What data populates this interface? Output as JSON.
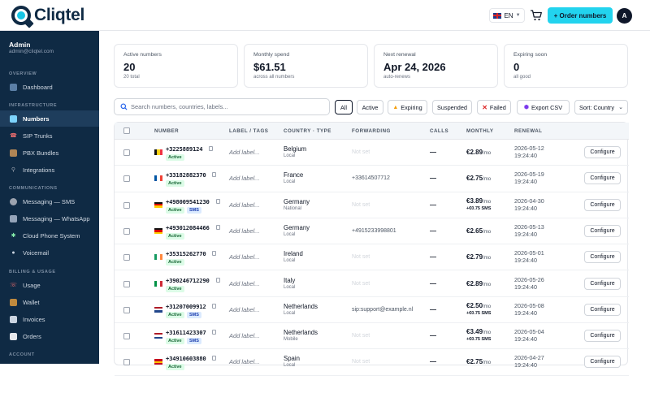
{
  "brand": {
    "name": "Cliqtel"
  },
  "header": {
    "language": "EN",
    "order_button": "+ Order numbers",
    "avatar_initial": "A"
  },
  "user": {
    "name": "Admin",
    "email": "admin@cliqtel.com"
  },
  "sidebar": {
    "sections": [
      "OVERVIEW",
      "INFRASTRUCTURE",
      "COMMUNICATIONS",
      "BILLING & USAGE",
      "ACCOUNT"
    ],
    "items": [
      {
        "label": "Dashboard",
        "icon": "dashboard-icon",
        "active": false
      },
      {
        "label": "Numbers",
        "icon": "numbers-icon",
        "active": true
      },
      {
        "label": "SIP Trunks",
        "icon": "phone-icon",
        "active": false
      },
      {
        "label": "PBX Bundles",
        "icon": "box-icon",
        "active": false
      },
      {
        "label": "Integrations",
        "icon": "integrations-icon",
        "active": false
      },
      {
        "label": "Messaging — SMS",
        "icon": "chat-icon",
        "active": false
      },
      {
        "label": "Messaging — WhatsApp",
        "icon": "whatsapp-icon",
        "active": false
      },
      {
        "label": "Cloud Phone System",
        "icon": "cloud-phone-icon",
        "active": false
      },
      {
        "label": "Voicemail",
        "icon": "voicemail-icon",
        "active": false
      },
      {
        "label": "Usage",
        "icon": "usage-icon",
        "active": false
      },
      {
        "label": "Wallet",
        "icon": "wallet-icon",
        "active": false
      },
      {
        "label": "Invoices",
        "icon": "invoice-icon",
        "active": false
      },
      {
        "label": "Orders",
        "icon": "orders-icon",
        "active": false
      }
    ]
  },
  "stats": [
    {
      "label": "Active numbers",
      "value": "20",
      "sub": "20 total"
    },
    {
      "label": "Monthly spend",
      "value": "$61.51",
      "sub": "across all numbers"
    },
    {
      "label": "Next renewal",
      "value": "Apr 24, 2026",
      "sub": "auto-renews"
    },
    {
      "label": "Expiring soon",
      "value": "0",
      "sub": "all good"
    }
  ],
  "filters": {
    "search_placeholder": "Search numbers, countries, labels...",
    "chips": [
      "All",
      "Active",
      "Expiring",
      "Suspended",
      "Failed"
    ],
    "selected": "All",
    "export": "Export CSV",
    "sort": "Sort: Country"
  },
  "table": {
    "columns": [
      "NUMBER",
      "LABEL / TAGS",
      "COUNTRY · TYPE",
      "FORWARDING",
      "CALLS",
      "MONTHLY",
      "RENEWAL"
    ],
    "add_label": "Add label...",
    "configure": "Configure",
    "rows": [
      {
        "number": "+3225889124",
        "flag": "BE",
        "badges": [
          "Active"
        ],
        "country": "Belgium",
        "type": "Local",
        "forwarding": "Not set",
        "calls": "—",
        "price": "€2.89",
        "per": "/mo",
        "sms_price": "",
        "renew_date": "2026-05-12",
        "renew_time": "19:24:40"
      },
      {
        "number": "+33182882370",
        "flag": "FR",
        "badges": [
          "Active"
        ],
        "country": "France",
        "type": "Local",
        "forwarding": "+33614507712",
        "calls": "—",
        "price": "€2.75",
        "per": "/mo",
        "sms_price": "",
        "renew_date": "2026-05-19",
        "renew_time": "19:24:40"
      },
      {
        "number": "+498009541230",
        "flag": "DE",
        "badges": [
          "Active",
          "SMS"
        ],
        "country": "Germany",
        "type": "National",
        "forwarding": "Not set",
        "calls": "—",
        "price": "€3.89",
        "per": "/mo",
        "sms_price": "+€0.75 SMS",
        "renew_date": "2026-04-30",
        "renew_time": "19:24:40"
      },
      {
        "number": "+493012084466",
        "flag": "DE",
        "badges": [
          "Active"
        ],
        "country": "Germany",
        "type": "Local",
        "forwarding": "+4915233998801",
        "calls": "—",
        "price": "€2.65",
        "per": "/mo",
        "sms_price": "",
        "renew_date": "2026-05-13",
        "renew_time": "19:24:40"
      },
      {
        "number": "+35315262770",
        "flag": "IE",
        "badges": [
          "Active"
        ],
        "country": "Ireland",
        "type": "Local",
        "forwarding": "Not set",
        "calls": "—",
        "price": "€2.79",
        "per": "/mo",
        "sms_price": "",
        "renew_date": "2026-05-01",
        "renew_time": "19:24:40"
      },
      {
        "number": "+390246712290",
        "flag": "IT",
        "badges": [
          "Active"
        ],
        "country": "Italy",
        "type": "Local",
        "forwarding": "Not set",
        "calls": "—",
        "price": "€2.89",
        "per": "/mo",
        "sms_price": "",
        "renew_date": "2026-05-26",
        "renew_time": "19:24:40"
      },
      {
        "number": "+31207009912",
        "flag": "NL",
        "badges": [
          "Active",
          "SMS"
        ],
        "country": "Netherlands",
        "type": "Local",
        "forwarding": "sip:support@example.nl",
        "calls": "—",
        "price": "€2.50",
        "per": "/mo",
        "sms_price": "+€0.75 SMS",
        "renew_date": "2026-05-08",
        "renew_time": "19:24:40"
      },
      {
        "number": "+31611423307",
        "flag": "NL",
        "badges": [
          "Active",
          "SMS"
        ],
        "country": "Netherlands",
        "type": "Mobile",
        "forwarding": "Not set",
        "calls": "—",
        "price": "€3.49",
        "per": "/mo",
        "sms_price": "+€0.75 SMS",
        "renew_date": "2026-05-04",
        "renew_time": "19:24:40"
      },
      {
        "number": "+34910603880",
        "flag": "ES",
        "badges": [
          "Active"
        ],
        "country": "Spain",
        "type": "Local",
        "forwarding": "Not set",
        "calls": "—",
        "price": "€2.75",
        "per": "/mo",
        "sms_price": "",
        "renew_date": "2026-04-27",
        "renew_time": "19:24:40"
      }
    ]
  },
  "colors": {
    "sidebar_bg": "#0f2a44",
    "accent": "#22d3ee",
    "active_badge": "#dcfce7",
    "sms_badge": "#dbeafe"
  }
}
